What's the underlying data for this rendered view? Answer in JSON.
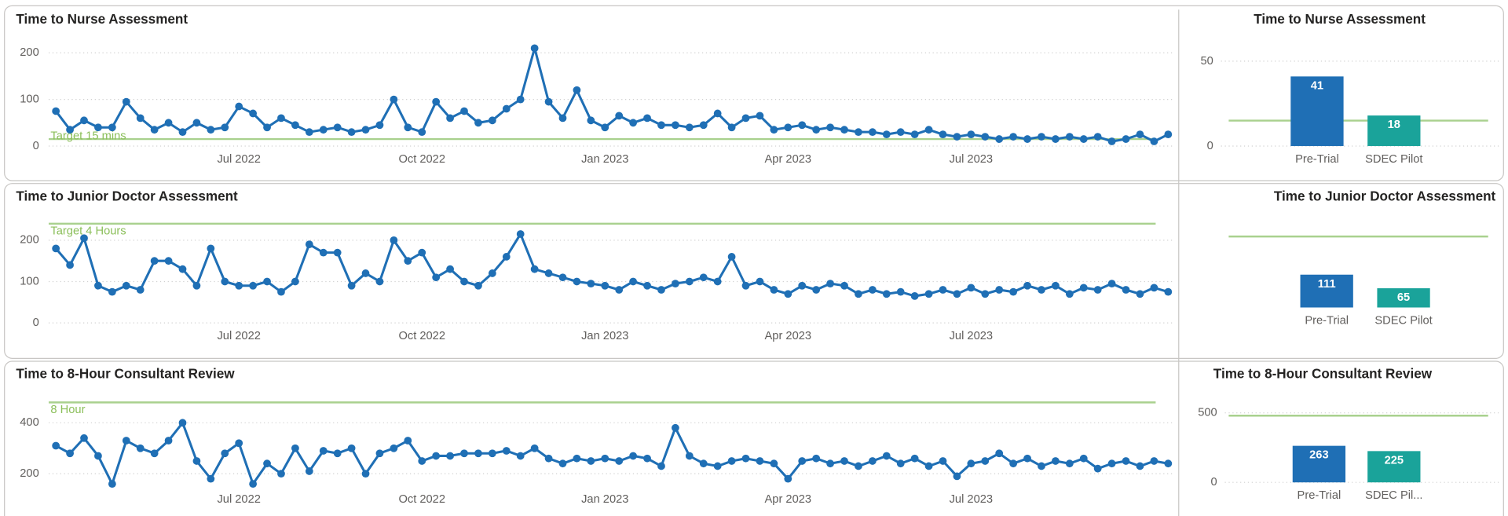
{
  "chart_data": [
    {
      "type": "line",
      "title": "Time to Nurse Assessment",
      "color": "#1f6fb5",
      "grid": true,
      "ylim": [
        0,
        240
      ],
      "yticks": [
        0,
        100,
        200
      ],
      "target": {
        "value": 15,
        "label": "Target 15 mins"
      },
      "categories": [
        null,
        null,
        null,
        null,
        null,
        null,
        null,
        null,
        null,
        null,
        null,
        null,
        null,
        "Jul 2022",
        null,
        null,
        null,
        null,
        null,
        null,
        null,
        null,
        null,
        null,
        null,
        null,
        "Oct 2022",
        null,
        null,
        null,
        null,
        null,
        null,
        null,
        null,
        null,
        null,
        null,
        null,
        "Jan 2023",
        null,
        null,
        null,
        null,
        null,
        null,
        null,
        null,
        null,
        null,
        null,
        null,
        "Apr 2023",
        null,
        null,
        null,
        null,
        null,
        null,
        null,
        null,
        null,
        null,
        null,
        null,
        "Jul 2023",
        null,
        null,
        null,
        null,
        null,
        null,
        null,
        null,
        null,
        null,
        null,
        null,
        null,
        null
      ],
      "values": [
        75,
        35,
        55,
        40,
        40,
        95,
        60,
        35,
        50,
        30,
        50,
        35,
        40,
        85,
        70,
        40,
        60,
        45,
        30,
        35,
        40,
        30,
        35,
        45,
        100,
        40,
        30,
        95,
        60,
        75,
        50,
        55,
        80,
        100,
        210,
        95,
        60,
        120,
        55,
        40,
        65,
        50,
        60,
        45,
        45,
        40,
        45,
        70,
        40,
        60,
        65,
        35,
        40,
        45,
        35,
        40,
        35,
        30,
        30,
        25,
        30,
        25,
        35,
        25,
        20,
        25,
        20,
        15,
        20,
        15,
        20,
        15,
        20,
        15,
        20,
        10,
        15,
        25,
        10,
        25
      ]
    },
    {
      "type": "bar",
      "title": "Time to Nurse Assessment",
      "ylim": [
        0,
        60
      ],
      "yticks": [
        0,
        50
      ],
      "target": {
        "value": 15
      },
      "categories": [
        "Pre-Trial",
        "SDEC Pilot"
      ],
      "colors": [
        "#1f6fb5",
        "#1aa39a"
      ],
      "values": [
        41,
        18
      ]
    },
    {
      "type": "line",
      "title": "Time to Junior Doctor Assessment",
      "color": "#1f6fb5",
      "grid": true,
      "ylim": [
        0,
        280
      ],
      "yticks": [
        0,
        100,
        200
      ],
      "target": {
        "value": 240,
        "label": "Target 4 Hours"
      },
      "categories": [
        null,
        null,
        null,
        null,
        null,
        null,
        null,
        null,
        null,
        null,
        null,
        null,
        null,
        "Jul 2022",
        null,
        null,
        null,
        null,
        null,
        null,
        null,
        null,
        null,
        null,
        null,
        null,
        "Oct 2022",
        null,
        null,
        null,
        null,
        null,
        null,
        null,
        null,
        null,
        null,
        null,
        null,
        "Jan 2023",
        null,
        null,
        null,
        null,
        null,
        null,
        null,
        null,
        null,
        null,
        null,
        null,
        "Apr 2023",
        null,
        null,
        null,
        null,
        null,
        null,
        null,
        null,
        null,
        null,
        null,
        null,
        "Jul 2023",
        null,
        null,
        null,
        null,
        null,
        null,
        null,
        null,
        null,
        null,
        null,
        null,
        null,
        null
      ],
      "values": [
        180,
        140,
        205,
        90,
        75,
        90,
        80,
        150,
        150,
        130,
        90,
        180,
        100,
        90,
        90,
        100,
        75,
        100,
        190,
        170,
        170,
        90,
        120,
        100,
        200,
        150,
        170,
        110,
        130,
        100,
        90,
        120,
        160,
        215,
        130,
        120,
        110,
        100,
        95,
        90,
        80,
        100,
        90,
        80,
        95,
        100,
        110,
        100,
        160,
        90,
        100,
        80,
        70,
        90,
        80,
        95,
        90,
        70,
        80,
        70,
        75,
        65,
        70,
        80,
        70,
        85,
        70,
        80,
        75,
        90,
        80,
        90,
        70,
        85,
        80,
        95,
        80,
        70,
        85,
        75
      ]
    },
    {
      "type": "bar",
      "title": "Time to Junior Doctor Assessment",
      "ylim": [
        0,
        260
      ],
      "target": {
        "value": 240
      },
      "categories": [
        "Pre-Trial",
        "SDEC Pilot"
      ],
      "colors": [
        "#1f6fb5",
        "#1aa39a"
      ],
      "values": [
        111,
        65
      ]
    },
    {
      "type": "line",
      "title": "Time to 8-Hour Consultant Review",
      "color": "#1f6fb5",
      "grid": true,
      "ylim": [
        150,
        500
      ],
      "yticks": [
        200,
        400
      ],
      "target": {
        "value": 480,
        "label": "8 Hour"
      },
      "categories": [
        null,
        null,
        null,
        null,
        null,
        null,
        null,
        null,
        null,
        null,
        null,
        null,
        null,
        "Jul 2022",
        null,
        null,
        null,
        null,
        null,
        null,
        null,
        null,
        null,
        null,
        null,
        null,
        "Oct 2022",
        null,
        null,
        null,
        null,
        null,
        null,
        null,
        null,
        null,
        null,
        null,
        null,
        "Jan 2023",
        null,
        null,
        null,
        null,
        null,
        null,
        null,
        null,
        null,
        null,
        null,
        null,
        "Apr 2023",
        null,
        null,
        null,
        null,
        null,
        null,
        null,
        null,
        null,
        null,
        null,
        null,
        "Jul 2023",
        null,
        null,
        null,
        null,
        null,
        null,
        null,
        null,
        null,
        null,
        null,
        null,
        null,
        null
      ],
      "values": [
        310,
        280,
        340,
        270,
        160,
        330,
        300,
        280,
        330,
        400,
        250,
        180,
        280,
        320,
        160,
        240,
        200,
        300,
        210,
        290,
        280,
        300,
        200,
        280,
        300,
        330,
        250,
        270,
        270,
        280,
        280,
        280,
        290,
        270,
        300,
        260,
        240,
        260,
        250,
        260,
        250,
        270,
        260,
        230,
        380,
        270,
        240,
        230,
        250,
        260,
        250,
        240,
        180,
        250,
        260,
        240,
        250,
        230,
        250,
        270,
        240,
        260,
        230,
        250,
        190,
        240,
        250,
        280,
        240,
        260,
        230,
        250,
        240,
        260,
        220,
        240,
        250,
        230,
        250,
        240
      ]
    },
    {
      "type": "bar",
      "title": "Time to 8-Hour Consultant Review",
      "ylim": [
        0,
        560
      ],
      "yticks": [
        0,
        500
      ],
      "target": {
        "value": 480
      },
      "categories": [
        "Pre-Trial",
        "SDEC Pil..."
      ],
      "colors": [
        "#1f6fb5",
        "#1aa39a"
      ],
      "values": [
        263,
        225
      ]
    }
  ]
}
